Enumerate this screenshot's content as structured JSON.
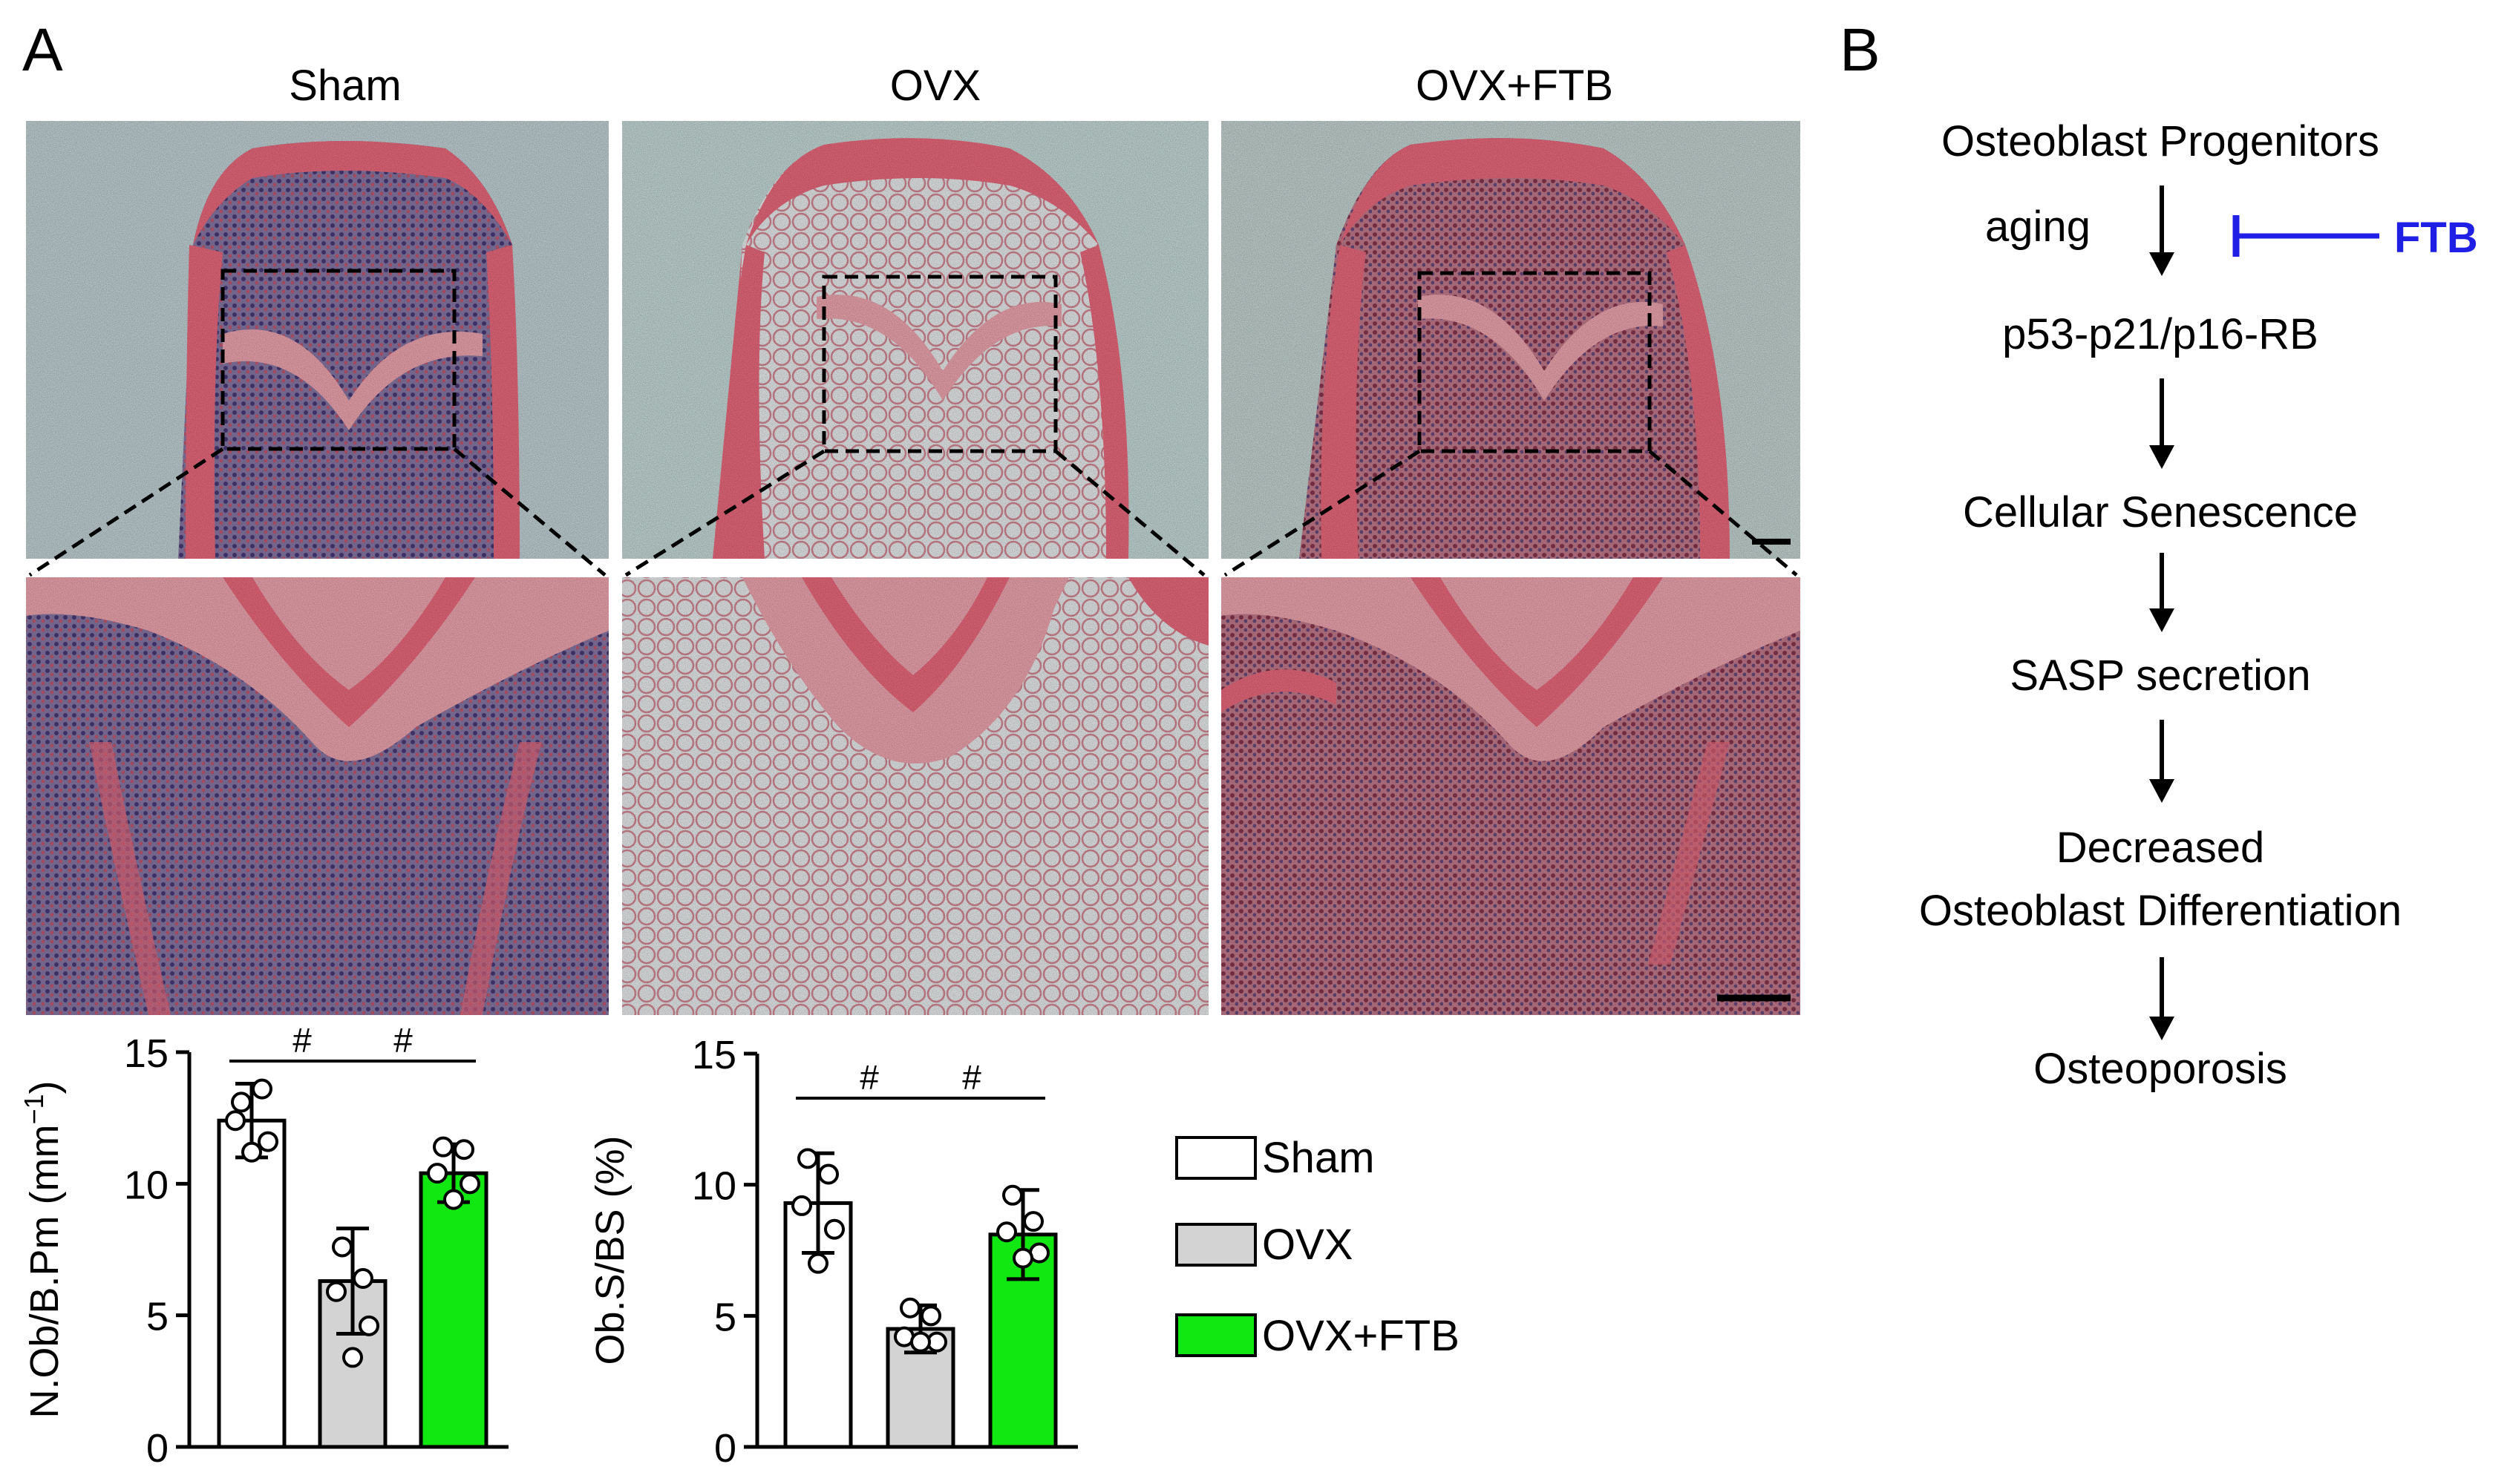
{
  "panel_a": {
    "letter": "A",
    "conditions": [
      "Sham",
      "OVX",
      "OVX+FTB"
    ],
    "micrographs": {
      "stain_colors": {
        "bone": "#ef6b7f",
        "bone_light": "#f4a9b3",
        "marrow_dense": "#5a4a86",
        "marrow_red": "#b8475f",
        "adipose": "#eef1f2",
        "background": "#c9dedc"
      },
      "description_names": [
        "sham-overview",
        "ovx-overview",
        "ovx-ftb-overview",
        "sham-zoom",
        "ovx-zoom",
        "ovx-ftb-zoom"
      ]
    }
  },
  "panel_b": {
    "letter": "B",
    "pathway": [
      "Osteoblast Progenitors",
      "p53-p21/p16-RB",
      "Cellular Senescence",
      "SASP secretion",
      "Decreased",
      "Osteoblast Differentiation",
      "Osteoporosis"
    ],
    "aging_label": "aging",
    "inhibitor_label": "FTB",
    "inhibitor_color": "#1f1fe6"
  },
  "legend": {
    "items": [
      {
        "label": "Sham",
        "color": "#ffffff"
      },
      {
        "label": "OVX",
        "color": "#d3d3d3"
      },
      {
        "label": "OVX+FTB",
        "color": "#11e811"
      }
    ]
  },
  "chart_data": [
    {
      "type": "bar",
      "title": "",
      "ylabel": "N.Ob/B.Pm (mm",
      "ylabel_sup": "−1",
      "ylabel_close": ")",
      "categories": [
        "Sham",
        "OVX",
        "OVX+FTB"
      ],
      "values": [
        12.4,
        6.3,
        10.4
      ],
      "errors": [
        1.4,
        2.0,
        1.1
      ],
      "points": [
        [
          13.1,
          13.6,
          12.4,
          11.6,
          11.2
        ],
        [
          7.6,
          6.4,
          5.9,
          4.6,
          3.4
        ],
        [
          11.4,
          11.3,
          10.4,
          10.0,
          9.4
        ]
      ],
      "colors": [
        "#ffffff",
        "#d3d3d3",
        "#11e811"
      ],
      "ylim": [
        0,
        15
      ],
      "yticks": [
        0,
        5,
        10,
        15
      ],
      "significance": [
        {
          "from": 0,
          "to": 1,
          "label": "#"
        },
        {
          "from": 1,
          "to": 2,
          "label": "#"
        }
      ]
    },
    {
      "type": "bar",
      "title": "",
      "ylabel": "Ob.S/BS (%)",
      "categories": [
        "Sham",
        "OVX",
        "OVX+FTB"
      ],
      "values": [
        9.3,
        4.5,
        8.1
      ],
      "errors": [
        1.9,
        0.9,
        1.7
      ],
      "points": [
        [
          11.0,
          10.4,
          9.2,
          8.3,
          7.0
        ],
        [
          5.3,
          5.0,
          4.2,
          4.0,
          4.0
        ],
        [
          9.6,
          8.6,
          8.2,
          7.4,
          7.2
        ]
      ],
      "colors": [
        "#ffffff",
        "#d3d3d3",
        "#11e811"
      ],
      "ylim": [
        0,
        15
      ],
      "yticks": [
        0,
        5,
        10,
        15
      ],
      "significance": [
        {
          "from": 0,
          "to": 1,
          "label": "#"
        },
        {
          "from": 1,
          "to": 2,
          "label": "#"
        }
      ]
    }
  ]
}
